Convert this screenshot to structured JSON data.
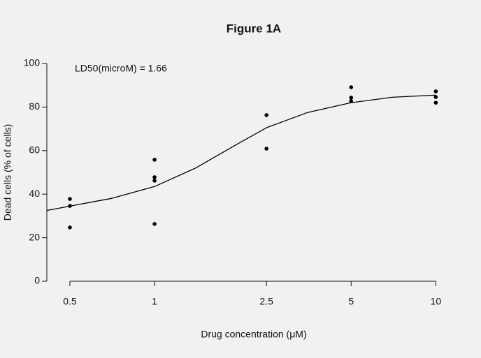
{
  "chart_data": {
    "type": "scatter",
    "title": "Figure 1A",
    "annotation": "LD50(microM) = 1.66",
    "xlabel": "Drug concentration (μM)",
    "ylabel": "Dead cells (% of cells)",
    "xscale": "log",
    "xlim": [
      0.414,
      11
    ],
    "ylim": [
      0,
      100
    ],
    "xticks": [
      0.5,
      1,
      2.5,
      5,
      10
    ],
    "yticks": [
      0,
      20,
      40,
      60,
      80,
      100
    ],
    "color": "#000000",
    "points": {
      "x": [
        0.5,
        0.5,
        0.5,
        1,
        1,
        1,
        1,
        2.5,
        2.5,
        5,
        5,
        5,
        10,
        10,
        10
      ],
      "values": [
        37.8,
        34.6,
        24.7,
        55.8,
        47.8,
        46.2,
        26.3,
        76.3,
        60.9,
        89.1,
        84.3,
        82.7,
        87.2,
        84.6,
        82
      ]
    },
    "curve": {
      "x": [
        0.414,
        0.5,
        0.7,
        1,
        1.4,
        1.66,
        2,
        2.5,
        3.5,
        5,
        7,
        10
      ],
      "values": [
        32.5,
        34.5,
        38,
        43.5,
        52,
        57.5,
        63.5,
        70.5,
        77.5,
        82,
        84.5,
        85.5
      ]
    }
  }
}
